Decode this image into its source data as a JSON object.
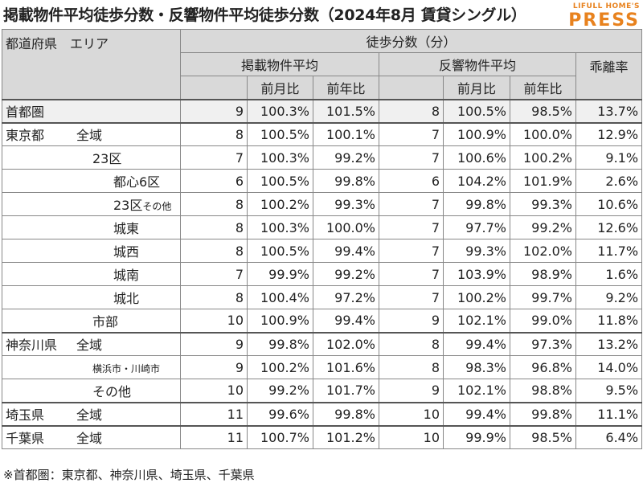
{
  "title": "掲載物件平均徒歩分数・反響物件平均徒歩分数（2024年8月 賃貸シングル）",
  "logo": {
    "line1": "LIFULL HOME'S",
    "line2": "PRESS"
  },
  "note": "※首都圏：東京都、神奈川県、埼玉県、千葉県",
  "headers": {
    "area": "都道府県　エリア",
    "walk": "徒歩分数（分）",
    "listed": "掲載物件平均",
    "response": "反響物件平均",
    "gap": "乖離率",
    "mom": "前月比",
    "yoy": "前年比"
  },
  "chart_data": {
    "type": "table",
    "columns": [
      "都道府県　エリア",
      "掲載物件平均",
      "前月比",
      "前年比",
      "反響物件平均",
      "前月比",
      "前年比",
      "乖離率"
    ],
    "rows": [
      {
        "pref": "首都圏",
        "area": "",
        "listed": "9",
        "l_mom": "100.3%",
        "l_yoy": "101.5%",
        "resp": "8",
        "r_mom": "100.5%",
        "r_yoy": "98.5%",
        "gap": "13.7%"
      },
      {
        "pref": "東京都",
        "area": "全域",
        "listed": "8",
        "l_mom": "100.5%",
        "l_yoy": "100.1%",
        "resp": "7",
        "r_mom": "100.9%",
        "r_yoy": "100.0%",
        "gap": "12.9%"
      },
      {
        "pref": "",
        "area": "23区",
        "listed": "7",
        "l_mom": "100.3%",
        "l_yoy": "99.2%",
        "resp": "7",
        "r_mom": "100.6%",
        "r_yoy": "100.2%",
        "gap": "9.1%"
      },
      {
        "pref": "",
        "area": "都心6区",
        "listed": "6",
        "l_mom": "100.5%",
        "l_yoy": "99.8%",
        "resp": "6",
        "r_mom": "104.2%",
        "r_yoy": "101.9%",
        "gap": "2.6%"
      },
      {
        "pref": "",
        "area": "23区その他",
        "listed": "8",
        "l_mom": "100.2%",
        "l_yoy": "99.3%",
        "resp": "7",
        "r_mom": "99.8%",
        "r_yoy": "99.3%",
        "gap": "10.6%"
      },
      {
        "pref": "",
        "area": "城東",
        "listed": "8",
        "l_mom": "100.3%",
        "l_yoy": "100.0%",
        "resp": "7",
        "r_mom": "97.7%",
        "r_yoy": "99.2%",
        "gap": "12.6%"
      },
      {
        "pref": "",
        "area": "城西",
        "listed": "8",
        "l_mom": "100.5%",
        "l_yoy": "99.4%",
        "resp": "7",
        "r_mom": "99.3%",
        "r_yoy": "102.0%",
        "gap": "11.7%"
      },
      {
        "pref": "",
        "area": "城南",
        "listed": "7",
        "l_mom": "99.9%",
        "l_yoy": "99.2%",
        "resp": "7",
        "r_mom": "103.9%",
        "r_yoy": "98.9%",
        "gap": "1.6%"
      },
      {
        "pref": "",
        "area": "城北",
        "listed": "8",
        "l_mom": "100.4%",
        "l_yoy": "97.2%",
        "resp": "7",
        "r_mom": "100.2%",
        "r_yoy": "99.7%",
        "gap": "9.2%"
      },
      {
        "pref": "",
        "area": "市部",
        "listed": "10",
        "l_mom": "100.9%",
        "l_yoy": "99.4%",
        "resp": "9",
        "r_mom": "102.1%",
        "r_yoy": "99.0%",
        "gap": "11.8%"
      },
      {
        "pref": "神奈川県",
        "area": "全域",
        "listed": "9",
        "l_mom": "99.8%",
        "l_yoy": "102.0%",
        "resp": "8",
        "r_mom": "99.4%",
        "r_yoy": "97.3%",
        "gap": "13.2%"
      },
      {
        "pref": "",
        "area": "横浜市・川崎市",
        "listed": "9",
        "l_mom": "100.2%",
        "l_yoy": "101.6%",
        "resp": "8",
        "r_mom": "98.3%",
        "r_yoy": "96.8%",
        "gap": "14.0%"
      },
      {
        "pref": "",
        "area": "その他",
        "listed": "10",
        "l_mom": "99.2%",
        "l_yoy": "101.7%",
        "resp": "9",
        "r_mom": "102.1%",
        "r_yoy": "98.8%",
        "gap": "9.5%"
      },
      {
        "pref": "埼玉県",
        "area": "全域",
        "listed": "11",
        "l_mom": "99.6%",
        "l_yoy": "99.8%",
        "resp": "10",
        "r_mom": "99.4%",
        "r_yoy": "99.8%",
        "gap": "11.1%"
      },
      {
        "pref": "千葉県",
        "area": "全域",
        "listed": "11",
        "l_mom": "100.7%",
        "l_yoy": "101.2%",
        "resp": "10",
        "r_mom": "99.9%",
        "r_yoy": "98.5%",
        "gap": "6.4%"
      }
    ]
  }
}
